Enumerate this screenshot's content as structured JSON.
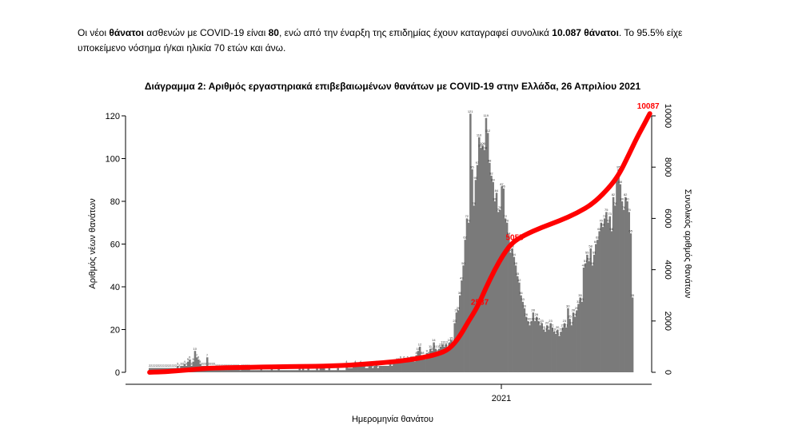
{
  "intro": {
    "p1": "Οι νέοι ",
    "b1": "θάνατοι",
    "p2": " ασθενών με COVID-19 είναι ",
    "b2": "80",
    "p3": ", ενώ από την έναρξη της επιδημίας έχουν καταγραφεί συνολικά ",
    "b3": "10.087 θάνατοι",
    "p4": ".  Το 95.5% είχε υποκείμενο νόσημα ή/και ηλικία 70 ετών και άνω."
  },
  "chart_data": {
    "type": "bar",
    "title": "Διάγραμμα 2: Αριθμός εργαστηριακά επιβεβαιωμένων θανάτων με COVID-19 στην Ελλάδα, 26 Απριλίου 2021",
    "xlabel": "Ημερομηνία θανάτου",
    "ylabel": "Αριθμός νέων θανάτων",
    "y2label": "Συνολικός αριθμός θανάτων",
    "ylim": [
      0,
      120
    ],
    "y2lim": [
      0,
      10000
    ],
    "yticks": [
      "0",
      "20",
      "40",
      "60",
      "80",
      "100",
      "120"
    ],
    "y2ticks": [
      "0",
      "2000",
      "4000",
      "6000",
      "8000",
      "10000"
    ],
    "xtick_label": "2021",
    "bar_color": "#7a7a7a",
    "line_color": "#ff0000",
    "series": [
      {
        "type": "bar",
        "values": [
          2,
          2,
          2,
          2,
          2,
          2,
          2,
          2,
          2,
          2,
          2,
          2,
          2,
          2,
          2,
          2,
          3,
          2,
          3,
          3,
          4,
          3,
          5,
          6,
          3,
          5,
          10,
          7,
          6,
          4,
          3,
          3,
          3,
          7,
          3,
          3,
          3,
          3,
          2,
          2,
          2,
          2,
          2,
          2,
          2,
          2,
          2,
          2,
          2,
          2,
          2,
          2,
          1,
          2,
          2,
          2,
          2,
          2,
          1,
          1,
          1,
          1,
          1,
          1,
          2,
          1,
          1,
          1,
          1,
          1,
          2,
          1,
          1,
          1,
          2,
          1,
          1,
          1,
          1,
          1,
          1,
          1,
          1,
          1,
          1,
          1,
          2,
          1,
          2,
          1,
          1,
          2,
          1,
          1,
          1,
          1,
          2,
          1,
          2,
          2,
          2,
          1,
          1,
          2,
          1,
          1,
          1,
          1,
          2,
          1,
          1,
          1,
          1,
          4,
          2,
          2,
          2,
          3,
          4,
          3,
          3,
          4,
          3,
          3,
          2,
          2,
          3,
          3,
          2,
          3,
          4,
          2,
          3,
          3,
          3,
          3,
          3,
          3,
          4,
          3,
          4,
          4,
          5,
          5,
          6,
          5,
          6,
          5,
          6,
          5,
          6,
          6,
          5,
          8,
          10,
          12,
          8,
          8,
          6,
          9,
          8,
          11,
          10,
          14,
          11,
          9,
          11,
          12,
          13,
          12,
          13,
          12,
          14,
          15,
          14,
          23,
          28,
          29,
          36,
          43,
          50,
          62,
          72,
          70,
          121,
          95,
          78,
          90,
          97,
          110,
          105,
          106,
          104,
          119,
          112,
          98,
          92,
          89,
          80,
          84,
          75,
          76,
          87,
          86,
          72,
          70,
          64,
          56,
          58,
          54,
          50,
          45,
          42,
          36,
          33,
          30,
          26,
          24,
          22,
          24,
          28,
          24,
          26,
          24,
          22,
          23,
          20,
          19,
          22,
          20,
          23,
          21,
          19,
          18,
          20,
          17,
          19,
          21,
          23,
          21,
          30,
          25,
          22,
          28,
          26,
          29,
          32,
          35,
          33,
          49,
          51,
          55,
          52,
          58,
          50,
          55,
          60,
          62,
          66,
          70,
          68,
          72,
          75,
          70,
          73,
          66,
          82,
          78,
          90,
          95,
          88,
          80,
          76,
          82,
          80,
          75,
          65,
          35
        ]
      },
      {
        "type": "line",
        "name": "cumulative",
        "points": [
          [
            0,
            0
          ],
          [
            5,
            10
          ],
          [
            10,
            25
          ],
          [
            20,
            80
          ],
          [
            30,
            140
          ],
          [
            40,
            175
          ],
          [
            55,
            195
          ],
          [
            65,
            205
          ],
          [
            75,
            215
          ],
          [
            85,
            225
          ],
          [
            95,
            235
          ],
          [
            105,
            250
          ],
          [
            115,
            280
          ],
          [
            125,
            330
          ],
          [
            135,
            380
          ],
          [
            145,
            450
          ],
          [
            155,
            550
          ],
          [
            165,
            700
          ],
          [
            172,
            900
          ],
          [
            178,
            1400
          ],
          [
            183,
            2000
          ],
          [
            188,
            2537
          ],
          [
            193,
            3300
          ],
          [
            198,
            4000
          ],
          [
            203,
            4600
          ],
          [
            208,
            5055
          ],
          [
            215,
            5350
          ],
          [
            225,
            5650
          ],
          [
            235,
            5900
          ],
          [
            245,
            6200
          ],
          [
            255,
            6600
          ],
          [
            265,
            7300
          ],
          [
            270,
            7800
          ],
          [
            275,
            8500
          ],
          [
            280,
            9200
          ],
          [
            284,
            9700
          ],
          [
            287,
            10087
          ]
        ]
      }
    ],
    "annotations": [
      {
        "label": "10087",
        "x": 287,
        "y": 10087
      },
      {
        "label": "5055",
        "x": 208,
        "y": 5055
      },
      {
        "label": "2537",
        "x": 188,
        "y": 2537
      }
    ]
  }
}
